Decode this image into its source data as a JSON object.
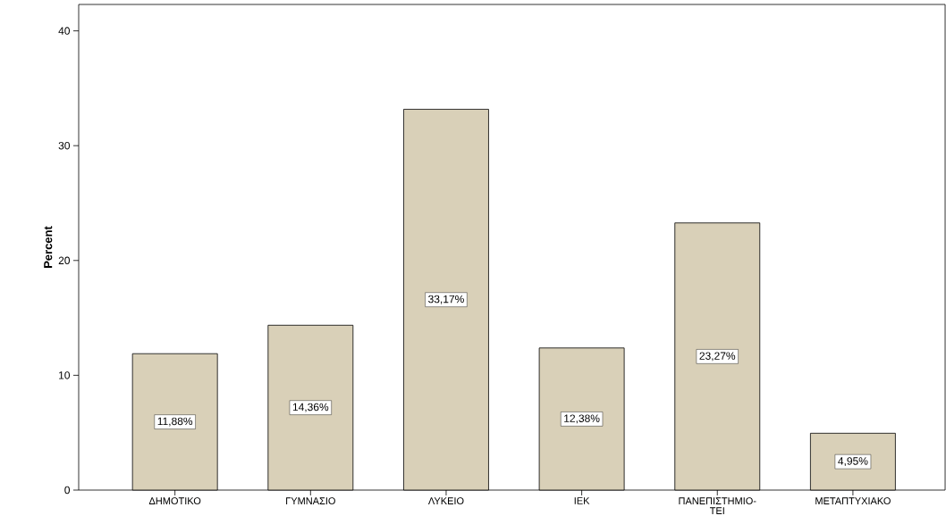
{
  "chart_data": {
    "type": "bar",
    "ylabel": "Percent",
    "categories": [
      "ΔΗΜΟΤΙΚΟ",
      "ΓΥΜΝΑΣΙΟ",
      "ΛΥΚΕΙΟ",
      "ΙΕΚ",
      "ΠΑΝΕΠΙΣΤΗΜΙΟ-ΤΕΙ",
      "ΜΕΤΑΠΤΥΧΙΑΚΟ"
    ],
    "values": [
      11.88,
      14.36,
      33.17,
      12.38,
      23.27,
      4.95
    ],
    "value_labels": [
      "11,88%",
      "14,36%",
      "33,17%",
      "12,38%",
      "23,27%",
      "4,95%"
    ],
    "color": "#d9d0b8",
    "ylim": [
      0,
      42.3
    ],
    "yticks": [
      0,
      10,
      20,
      30,
      40
    ],
    "grid": false
  }
}
